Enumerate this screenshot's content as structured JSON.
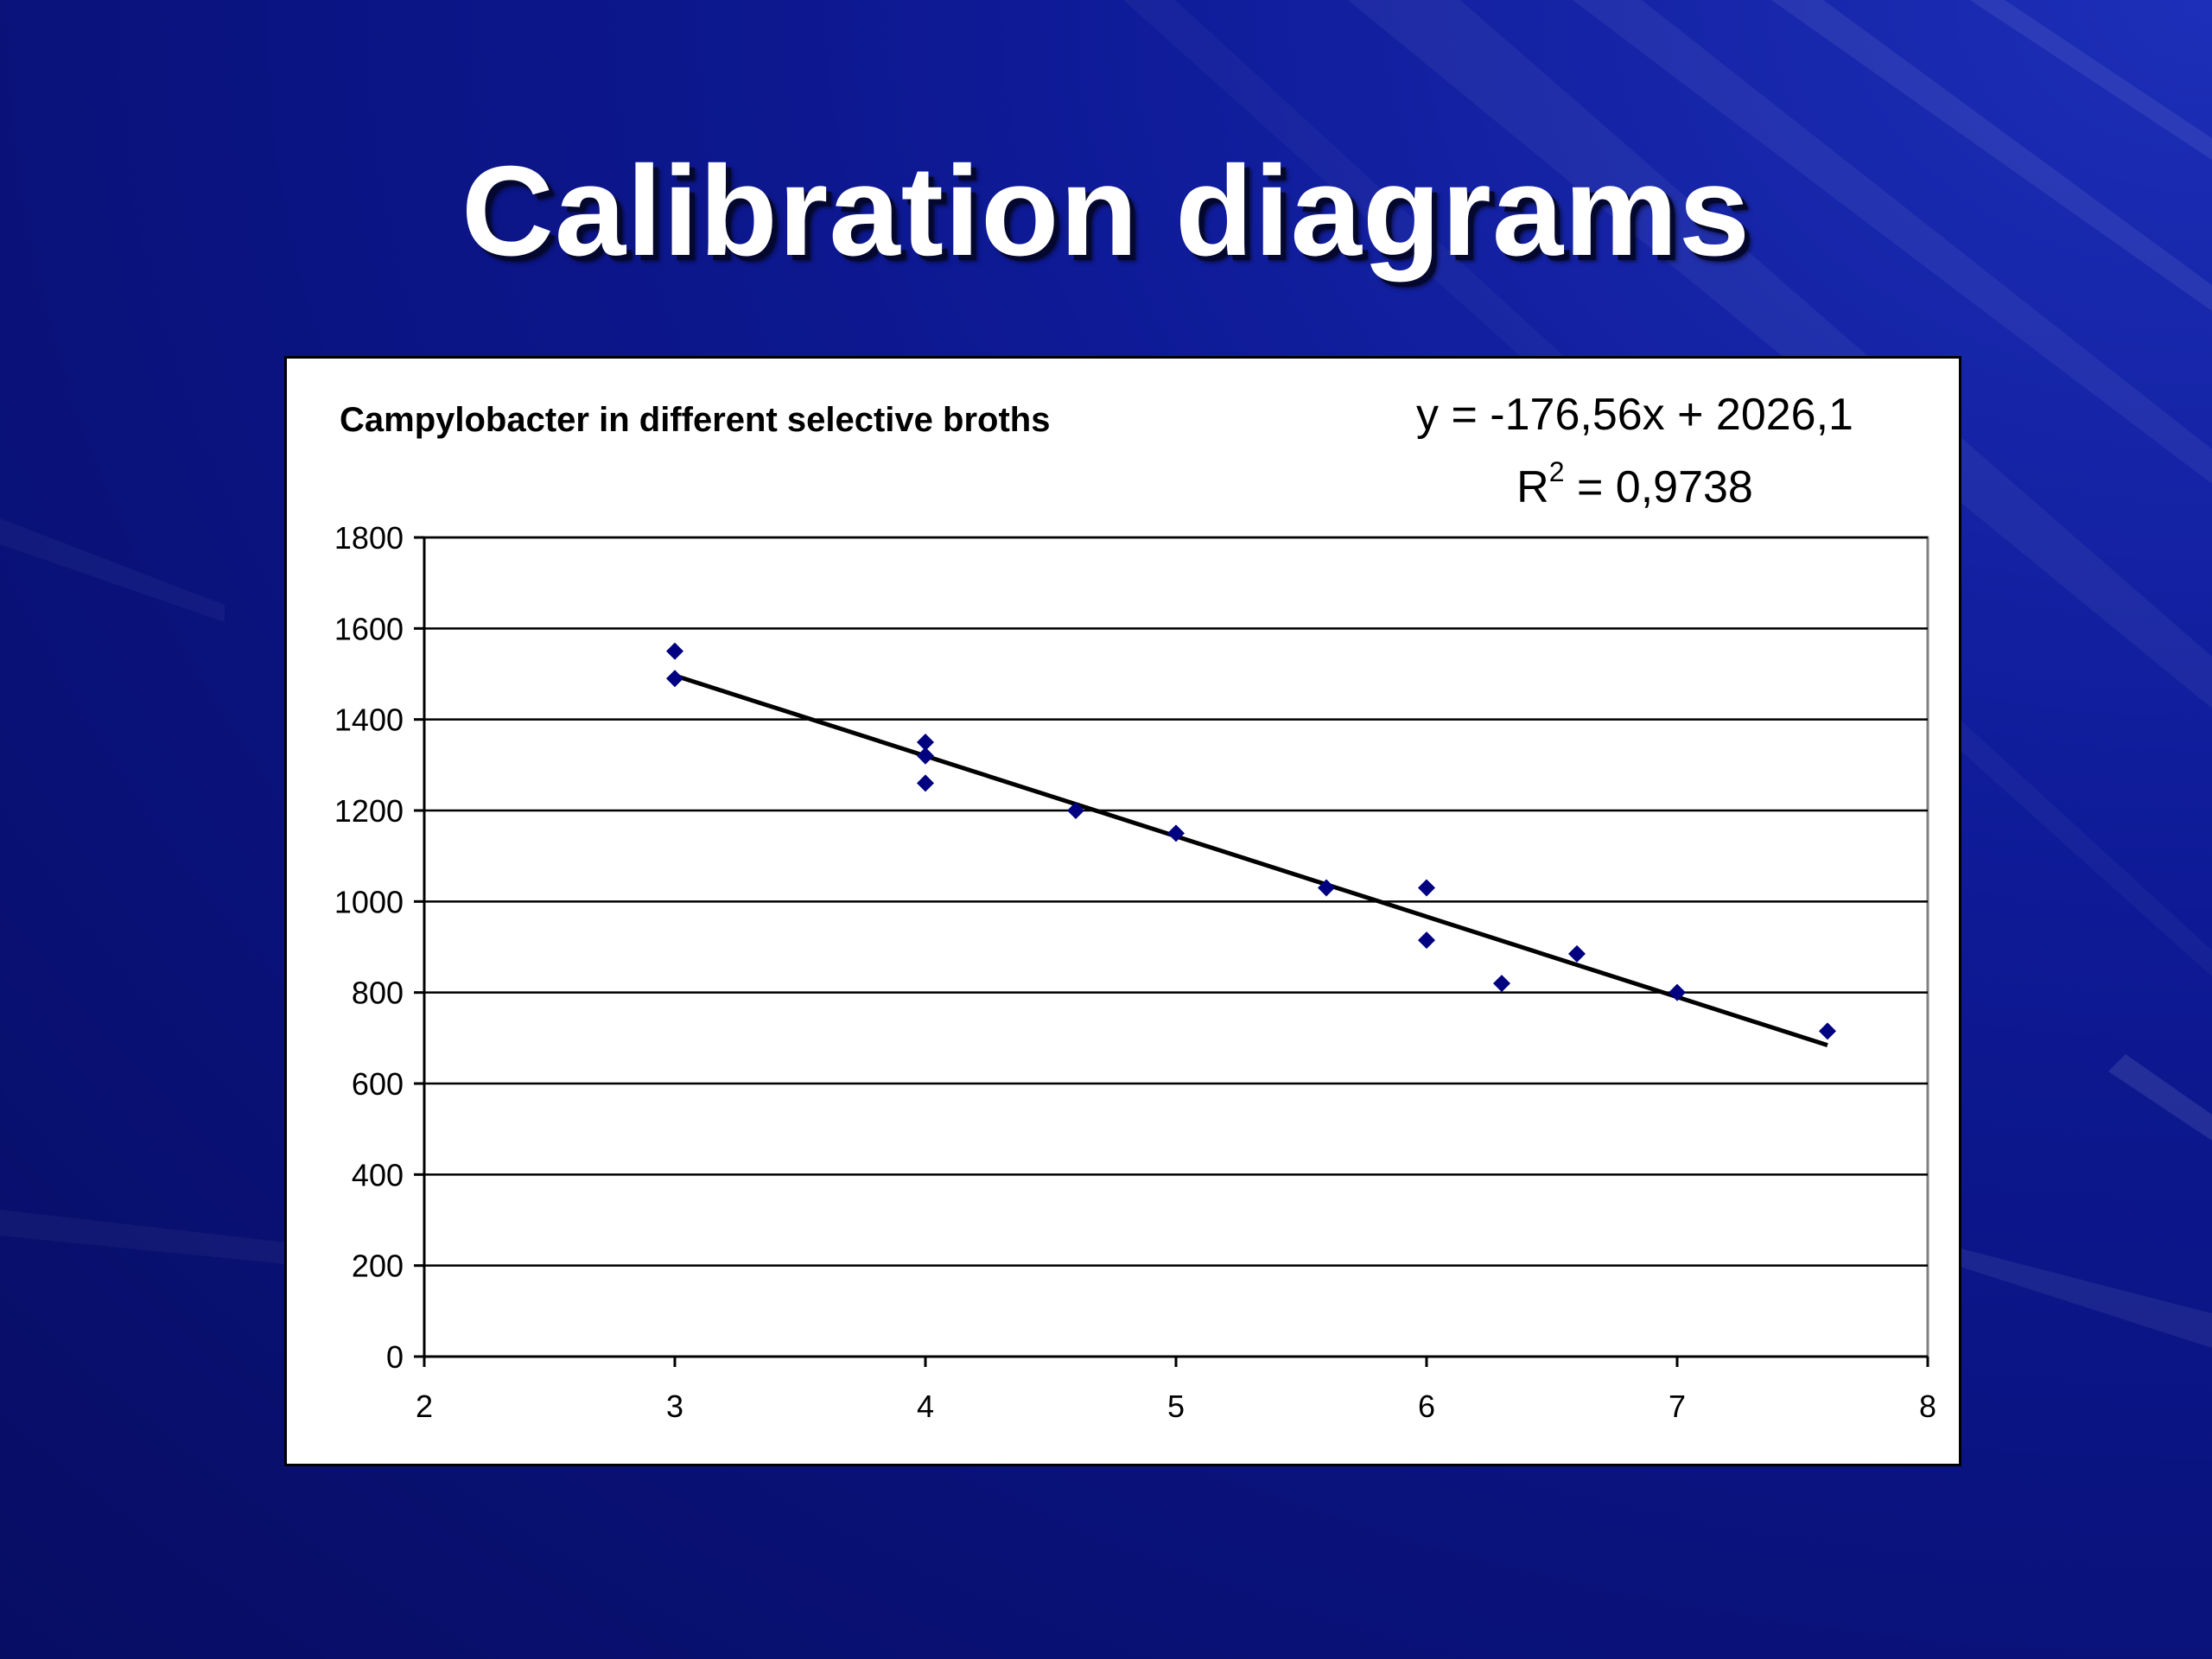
{
  "slide": {
    "title": "Calibration diagrams"
  },
  "theme": {
    "background": "#0a137f",
    "chart_background": "#ffffff",
    "marker_color": "#000080",
    "trendline_color": "#000000",
    "gridline_color": "#000000"
  },
  "chart_data": {
    "type": "scatter",
    "title": "Campylobacter in different selective broths",
    "xlabel": "",
    "ylabel": "",
    "xlim": [
      2,
      8
    ],
    "ylim": [
      0,
      1800
    ],
    "xticks": [
      2,
      3,
      4,
      5,
      6,
      7,
      8
    ],
    "yticks": [
      0,
      200,
      400,
      600,
      800,
      1000,
      1200,
      1400,
      1600,
      1800
    ],
    "grid": "horizontal major gridlines",
    "legend": "none",
    "marker": "diamond",
    "series": [
      {
        "points": [
          {
            "x": 3.0,
            "y": 1550
          },
          {
            "x": 3.0,
            "y": 1490
          },
          {
            "x": 4.0,
            "y": 1350
          },
          {
            "x": 4.0,
            "y": 1320
          },
          {
            "x": 4.0,
            "y": 1260
          },
          {
            "x": 4.6,
            "y": 1200
          },
          {
            "x": 5.0,
            "y": 1150
          },
          {
            "x": 5.6,
            "y": 1030
          },
          {
            "x": 6.0,
            "y": 1030
          },
          {
            "x": 6.0,
            "y": 915
          },
          {
            "x": 6.3,
            "y": 820
          },
          {
            "x": 6.6,
            "y": 885
          },
          {
            "x": 7.0,
            "y": 800
          },
          {
            "x": 7.6,
            "y": 715
          }
        ]
      }
    ],
    "trendline": {
      "type": "linear",
      "slope": -176.56,
      "intercept": 2026.1,
      "x_range": [
        3.0,
        7.6
      ],
      "equation_label": "y = -176,56x + 2026,1",
      "r2_prefix": "R",
      "r2_superscript": "2",
      "r2_value_text": " = 0,9738"
    }
  }
}
